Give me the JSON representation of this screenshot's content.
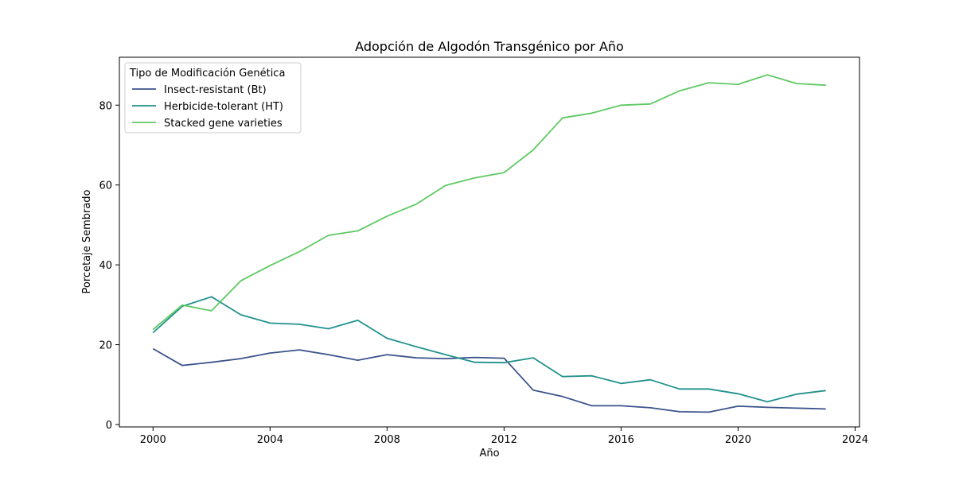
{
  "chart_data": {
    "type": "line",
    "title": "Adopción de Algodón Transgénico por Año",
    "xlabel": "Año",
    "ylabel": "Porcetaje Sembrado",
    "xlim": [
      1998.85,
      2024.15
    ],
    "ylim": [
      -0.6,
      92
    ],
    "x_ticks": [
      2000,
      2004,
      2008,
      2012,
      2016,
      2020,
      2024
    ],
    "y_ticks": [
      0,
      20,
      40,
      60,
      80
    ],
    "grid": false,
    "legend": {
      "title": "Tipo de Modificación Genética",
      "position": "top-left"
    },
    "x": [
      2000,
      2001,
      2002,
      2003,
      2004,
      2005,
      2006,
      2007,
      2008,
      2009,
      2010,
      2011,
      2012,
      2013,
      2014,
      2015,
      2016,
      2017,
      2018,
      2019,
      2020,
      2021,
      2022,
      2023
    ],
    "series": [
      {
        "name": "Insect-resistant (Bt)",
        "color": "#3b528b",
        "values": [
          19.0,
          14.8,
          15.6,
          16.5,
          17.9,
          18.7,
          17.5,
          16.1,
          17.5,
          16.7,
          16.5,
          16.8,
          16.6,
          8.6,
          7.0,
          4.7,
          4.7,
          4.2,
          3.2,
          3.1,
          4.6,
          4.3,
          4.1,
          3.9
        ]
      },
      {
        "name": "Herbicide-tolerant (HT)",
        "color": "#21918c",
        "values": [
          23.0,
          29.6,
          32.0,
          27.5,
          25.4,
          25.1,
          24.0,
          26.1,
          21.6,
          19.5,
          17.5,
          15.6,
          15.5,
          16.7,
          12.0,
          12.2,
          10.3,
          11.2,
          8.9,
          8.9,
          7.7,
          5.7,
          7.6,
          8.5
        ]
      },
      {
        "name": "Stacked gene varieties",
        "color": "#5ec962",
        "values": [
          23.8,
          29.9,
          28.5,
          36.0,
          39.8,
          43.3,
          47.4,
          48.5,
          52.2,
          55.2,
          59.9,
          61.8,
          63.1,
          68.8,
          76.8,
          78.0,
          80.0,
          80.3,
          83.6,
          85.6,
          85.2,
          87.6,
          85.4,
          85.0
        ]
      }
    ]
  }
}
